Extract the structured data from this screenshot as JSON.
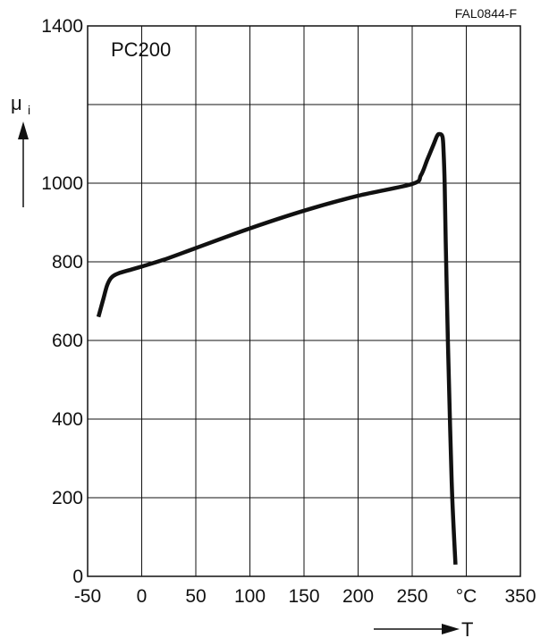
{
  "figure_code": "FAL0844-F",
  "chart_data": {
    "type": "line",
    "title": "",
    "annotation": "PC200",
    "ylabel": "μ",
    "ylabel_subscript": "i",
    "xlabel": "T",
    "x_unit": "°C",
    "xlim": [
      -50,
      350
    ],
    "ylim": [
      0,
      1400
    ],
    "x_ticks": [
      "-50",
      "0",
      "50",
      "100",
      "150",
      "200",
      "250",
      "°C",
      "350"
    ],
    "y_ticks": [
      "0",
      "200",
      "400",
      "600",
      "800",
      "1000",
      "",
      "1400"
    ],
    "x_tick_values": [
      -50,
      0,
      50,
      100,
      150,
      200,
      250,
      300,
      350
    ],
    "y_tick_values": [
      0,
      200,
      400,
      600,
      800,
      1000,
      1200,
      1400
    ],
    "grid": true,
    "line_color": "#111111",
    "series": [
      {
        "x": [
          -40,
          -36,
          -32,
          -28,
          -22,
          -10,
          0,
          20,
          50,
          100,
          150,
          200,
          250,
          258,
          264,
          270,
          273,
          275,
          278,
          279,
          280,
          281,
          283,
          285,
          287,
          290
        ],
        "y": [
          660,
          700,
          740,
          760,
          770,
          780,
          788,
          805,
          835,
          885,
          930,
          968,
          998,
          1020,
          1060,
          1100,
          1120,
          1125,
          1118,
          1080,
          1000,
          850,
          600,
          380,
          200,
          30
        ]
      }
    ]
  }
}
